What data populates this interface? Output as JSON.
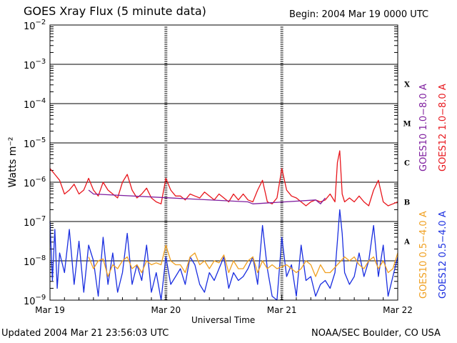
{
  "header": {
    "title": "GOES Xray Flux (5 minute data)",
    "begin": "Begin:  2004 Mar 19 0000 UTC"
  },
  "footer": {
    "updated": "Updated 2004 Mar 21 23:56:03 UTC",
    "credit": "NOAA/SEC Boulder, CO USA"
  },
  "colors": {
    "goes10_long": "#7f1f9f",
    "goes12_long": "#e8161c",
    "goes10_short": "#f0a020",
    "goes12_short": "#1a2ee0",
    "grid": "#000000"
  },
  "chart_data": {
    "type": "line",
    "title": "GOES Xray Flux (5 minute data)",
    "xlabel": "Universal Time",
    "ylabel": "Watts m⁻²",
    "yscale": "log",
    "ylim_exp": [
      -9,
      -2
    ],
    "xlim_hours": [
      0,
      72
    ],
    "x_ticks": [
      {
        "hour": 0,
        "label": "Mar 19"
      },
      {
        "hour": 24,
        "label": "Mar 20"
      },
      {
        "hour": 48,
        "label": "Mar 21"
      },
      {
        "hour": 72,
        "label": "Mar 22"
      }
    ],
    "y_ticks": [
      {
        "exp": -2,
        "label": "10",
        "sup": "−2"
      },
      {
        "exp": -3,
        "label": "10",
        "sup": "−3"
      },
      {
        "exp": -4,
        "label": "10",
        "sup": "−4"
      },
      {
        "exp": -5,
        "label": "10",
        "sup": "−5"
      },
      {
        "exp": -6,
        "label": "10",
        "sup": "−6"
      },
      {
        "exp": -7,
        "label": "10",
        "sup": "−7"
      },
      {
        "exp": -8,
        "label": "10",
        "sup": "−8"
      },
      {
        "exp": -9,
        "label": "10",
        "sup": "−9"
      }
    ],
    "flare_classes": [
      {
        "label": "X",
        "exp": -3.5
      },
      {
        "label": "M",
        "exp": -4.5
      },
      {
        "label": "C",
        "exp": -5.5
      },
      {
        "label": "B",
        "exp": -6.5
      },
      {
        "label": "A",
        "exp": -7.5
      }
    ],
    "legend": [
      {
        "name": "GOES10 1.0−8.0 A",
        "color": "#7f1f9f"
      },
      {
        "name": "GOES12 1.0−8.0 A",
        "color": "#e8161c"
      },
      {
        "name": "GOES10 0.5−4.0 A",
        "color": "#f0a020"
      },
      {
        "name": "GOES12 0.5−4.0 A",
        "color": "#1a2ee0"
      }
    ],
    "series": [
      {
        "name": "GOES12 1.0−8.0 A",
        "color": "#e8161c",
        "points": [
          [
            0,
            -5.65
          ],
          [
            1,
            -5.8
          ],
          [
            2,
            -5.95
          ],
          [
            3,
            -6.3
          ],
          [
            4,
            -6.2
          ],
          [
            5,
            -6.05
          ],
          [
            6,
            -6.3
          ],
          [
            7,
            -6.2
          ],
          [
            8,
            -5.9
          ],
          [
            9,
            -6.2
          ],
          [
            10,
            -6.35
          ],
          [
            11,
            -6.0
          ],
          [
            12,
            -6.2
          ],
          [
            13,
            -6.3
          ],
          [
            14,
            -6.4
          ],
          [
            15,
            -6.0
          ],
          [
            16,
            -5.8
          ],
          [
            17,
            -6.2
          ],
          [
            18,
            -6.4
          ],
          [
            19,
            -6.3
          ],
          [
            20,
            -6.15
          ],
          [
            21,
            -6.4
          ],
          [
            22,
            -6.5
          ],
          [
            23,
            -6.55
          ],
          [
            24,
            -5.9
          ],
          [
            25,
            -6.2
          ],
          [
            26,
            -6.35
          ],
          [
            27,
            -6.35
          ],
          [
            28,
            -6.45
          ],
          [
            29,
            -6.3
          ],
          [
            30,
            -6.35
          ],
          [
            31,
            -6.4
          ],
          [
            32,
            -6.25
          ],
          [
            33,
            -6.35
          ],
          [
            34,
            -6.45
          ],
          [
            35,
            -6.3
          ],
          [
            36,
            -6.4
          ],
          [
            37,
            -6.5
          ],
          [
            38,
            -6.3
          ],
          [
            39,
            -6.45
          ],
          [
            40,
            -6.3
          ],
          [
            41,
            -6.45
          ],
          [
            42,
            -6.5
          ],
          [
            43,
            -6.2
          ],
          [
            44,
            -5.95
          ],
          [
            45,
            -6.5
          ],
          [
            46,
            -6.55
          ],
          [
            47,
            -6.4
          ],
          [
            48,
            -5.65
          ],
          [
            49,
            -6.2
          ],
          [
            50,
            -6.35
          ],
          [
            51,
            -6.4
          ],
          [
            52,
            -6.5
          ],
          [
            53,
            -6.6
          ],
          [
            54,
            -6.5
          ],
          [
            55,
            -6.45
          ],
          [
            56,
            -6.5
          ],
          [
            57,
            -6.45
          ],
          [
            58,
            -6.3
          ],
          [
            59,
            -6.5
          ],
          [
            59.5,
            -5.5
          ],
          [
            60,
            -5.2
          ],
          [
            60.5,
            -6.3
          ],
          [
            61,
            -6.5
          ],
          [
            62,
            -6.4
          ],
          [
            63,
            -6.5
          ],
          [
            64,
            -6.35
          ],
          [
            65,
            -6.5
          ],
          [
            66,
            -6.6
          ],
          [
            67,
            -6.2
          ],
          [
            68,
            -5.95
          ],
          [
            69,
            -6.5
          ],
          [
            70,
            -6.6
          ],
          [
            71,
            -6.55
          ],
          [
            72,
            -6.5
          ]
        ]
      },
      {
        "name": "GOES10 1.0−8.0 A",
        "color": "#7f1f9f",
        "points": [
          [
            8,
            -6.2
          ],
          [
            9,
            -6.3
          ],
          [
            41,
            -6.5
          ],
          [
            42,
            -6.55
          ],
          [
            55,
            -6.45
          ],
          [
            56,
            -6.55
          ],
          [
            57,
            -6.4
          ]
        ]
      },
      {
        "name": "GOES10 0.5−4.0 A",
        "color": "#f0a020",
        "points": [
          [
            8,
            -7.9
          ],
          [
            9,
            -8.2
          ],
          [
            10,
            -8.0
          ],
          [
            11,
            -7.95
          ],
          [
            12,
            -8.4
          ],
          [
            13,
            -8.1
          ],
          [
            14,
            -8.2
          ],
          [
            15,
            -8.0
          ],
          [
            16,
            -7.9
          ],
          [
            17,
            -8.2
          ],
          [
            18,
            -8.1
          ],
          [
            19,
            -8.3
          ],
          [
            20,
            -8.0
          ],
          [
            21,
            -8.1
          ],
          [
            22,
            -8.05
          ],
          [
            23,
            -8.1
          ],
          [
            24,
            -7.6
          ],
          [
            25,
            -8.0
          ],
          [
            26,
            -8.1
          ],
          [
            27,
            -8.1
          ],
          [
            28,
            -8.3
          ],
          [
            29,
            -7.9
          ],
          [
            30,
            -7.8
          ],
          [
            31,
            -8.1
          ],
          [
            32,
            -8.0
          ],
          [
            33,
            -8.2
          ],
          [
            34,
            -8.0
          ],
          [
            35,
            -8.05
          ],
          [
            36,
            -7.85
          ],
          [
            37,
            -8.3
          ],
          [
            38,
            -8.0
          ],
          [
            39,
            -8.2
          ],
          [
            40,
            -8.2
          ],
          [
            41,
            -8.0
          ],
          [
            42,
            -7.9
          ],
          [
            43,
            -8.3
          ],
          [
            44,
            -8.0
          ],
          [
            45,
            -8.2
          ],
          [
            46,
            -8.1
          ],
          [
            47,
            -8.2
          ],
          [
            49,
            -8.1
          ],
          [
            50,
            -8.2
          ],
          [
            51,
            -8.3
          ],
          [
            52,
            -8.2
          ],
          [
            53,
            -8.0
          ],
          [
            54,
            -8.1
          ],
          [
            55,
            -8.4
          ],
          [
            56,
            -8.1
          ],
          [
            57,
            -8.3
          ],
          [
            58,
            -8.3
          ],
          [
            61,
            -7.9
          ],
          [
            62,
            -8.0
          ],
          [
            63,
            -7.9
          ],
          [
            64,
            -8.1
          ],
          [
            65,
            -8.2
          ],
          [
            66,
            -8.0
          ],
          [
            67,
            -7.9
          ],
          [
            68,
            -8.2
          ],
          [
            69,
            -8.0
          ],
          [
            70,
            -8.3
          ],
          [
            71,
            -8.2
          ],
          [
            72,
            -7.8
          ]
        ]
      },
      {
        "name": "GOES12 0.5−4.0 A",
        "color": "#1a2ee0",
        "points": [
          [
            0,
            -7.0
          ],
          [
            0.5,
            -8.5
          ],
          [
            1,
            -7.2
          ],
          [
            1.5,
            -8.7
          ],
          [
            2,
            -7.8
          ],
          [
            3,
            -8.3
          ],
          [
            4,
            -7.2
          ],
          [
            5,
            -8.6
          ],
          [
            6,
            -7.5
          ],
          [
            7,
            -8.8
          ],
          [
            8,
            -7.6
          ],
          [
            9,
            -8.0
          ],
          [
            10,
            -8.9
          ],
          [
            11,
            -7.4
          ],
          [
            12,
            -8.6
          ],
          [
            13,
            -7.8
          ],
          [
            14,
            -8.8
          ],
          [
            15,
            -8.3
          ],
          [
            16,
            -7.3
          ],
          [
            17,
            -8.6
          ],
          [
            18,
            -8.1
          ],
          [
            19,
            -8.5
          ],
          [
            20,
            -7.6
          ],
          [
            21,
            -8.8
          ],
          [
            22,
            -8.3
          ],
          [
            23,
            -9.0
          ],
          [
            24,
            -7.9
          ],
          [
            25,
            -8.6
          ],
          [
            26,
            -8.4
          ],
          [
            27,
            -8.2
          ],
          [
            28,
            -8.6
          ],
          [
            29,
            -7.9
          ],
          [
            30,
            -8.1
          ],
          [
            31,
            -8.6
          ],
          [
            32,
            -8.8
          ],
          [
            33,
            -8.3
          ],
          [
            34,
            -8.5
          ],
          [
            35,
            -8.2
          ],
          [
            36,
            -7.9
          ],
          [
            37,
            -8.7
          ],
          [
            38,
            -8.3
          ],
          [
            39,
            -8.5
          ],
          [
            40,
            -8.4
          ],
          [
            41,
            -8.2
          ],
          [
            42,
            -7.9
          ],
          [
            43,
            -8.6
          ],
          [
            44,
            -7.1
          ],
          [
            45,
            -8.2
          ],
          [
            46,
            -8.9
          ],
          [
            47,
            -9.0
          ],
          [
            48,
            -7.4
          ],
          [
            49,
            -8.4
          ],
          [
            50,
            -8.1
          ],
          [
            51,
            -8.9
          ],
          [
            52,
            -7.6
          ],
          [
            53,
            -8.5
          ],
          [
            54,
            -8.4
          ],
          [
            55,
            -8.9
          ],
          [
            56,
            -8.6
          ],
          [
            57,
            -8.5
          ],
          [
            58,
            -8.7
          ],
          [
            59,
            -8.3
          ],
          [
            59.5,
            -7.5
          ],
          [
            60,
            -6.7
          ],
          [
            60.5,
            -7.3
          ],
          [
            61,
            -8.3
          ],
          [
            62,
            -8.6
          ],
          [
            63,
            -8.4
          ],
          [
            64,
            -7.8
          ],
          [
            65,
            -8.4
          ],
          [
            66,
            -8.0
          ],
          [
            67,
            -7.1
          ],
          [
            68,
            -8.4
          ],
          [
            69,
            -7.6
          ],
          [
            70,
            -8.9
          ],
          [
            71,
            -8.4
          ],
          [
            72,
            -7.9
          ]
        ]
      }
    ]
  }
}
